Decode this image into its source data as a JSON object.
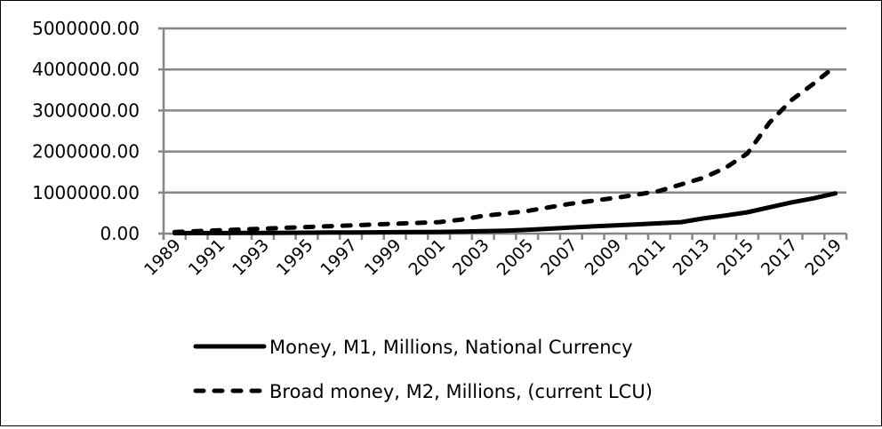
{
  "chart_data": {
    "type": "line",
    "title": "",
    "xlabel": "",
    "ylabel": "",
    "ylim": [
      0,
      5000000
    ],
    "yticks": [
      "0.00",
      "1000000.00",
      "2000000.00",
      "3000000.00",
      "4000000.00",
      "5000000.00"
    ],
    "grid": true,
    "legend_placement": "bottom",
    "x": [
      1989,
      1990,
      1991,
      1992,
      1993,
      1994,
      1995,
      1996,
      1997,
      1998,
      1999,
      2000,
      2001,
      2002,
      2003,
      2004,
      2005,
      2006,
      2007,
      2008,
      2009,
      2010,
      2011,
      2012,
      2013,
      2014,
      2015,
      2016,
      2017,
      2018,
      2019
    ],
    "xtick_labels": [
      "1989",
      "1991",
      "1993",
      "1995",
      "1997",
      "1999",
      "2001",
      "2003",
      "2005",
      "2007",
      "2009",
      "2011",
      "2013",
      "2015",
      "2017",
      "2019"
    ],
    "series": [
      {
        "name": "Money, M1, Millions, National Currency",
        "style": "solid",
        "values": [
          10000,
          12000,
          14000,
          16000,
          18000,
          20000,
          22000,
          25000,
          28000,
          31000,
          34000,
          38000,
          42000,
          48000,
          58000,
          70000,
          90000,
          120000,
          150000,
          175000,
          200000,
          225000,
          250000,
          280000,
          370000,
          440000,
          520000,
          640000,
          760000,
          860000,
          980000
        ]
      },
      {
        "name": "Broad money, M2, Millions, (current LCU)",
        "style": "dashed",
        "values": [
          40000,
          60000,
          80000,
          100000,
          120000,
          140000,
          160000,
          180000,
          200000,
          220000,
          240000,
          260000,
          280000,
          340000,
          430000,
          490000,
          550000,
          640000,
          730000,
          800000,
          870000,
          950000,
          1040000,
          1200000,
          1360000,
          1600000,
          1950000,
          2700000,
          3250000,
          3650000,
          4080000
        ]
      }
    ]
  }
}
